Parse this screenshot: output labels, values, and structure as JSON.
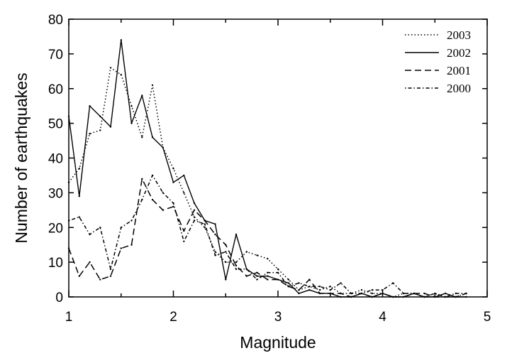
{
  "chart_data": {
    "type": "line",
    "xlabel": "Magnitude",
    "ylabel": "Number of earthquakes",
    "xlim": [
      1,
      5
    ],
    "ylim": [
      0,
      80
    ],
    "xticks": [
      1,
      2,
      3,
      4,
      5
    ],
    "yticks": [
      0,
      10,
      20,
      30,
      40,
      50,
      60,
      70,
      80
    ],
    "grid": false,
    "legend_position": "top-right",
    "series": [
      {
        "name": "2003",
        "style": "dotted",
        "color": "#000000",
        "x": [
          1.0,
          1.1,
          1.2,
          1.3,
          1.4,
          1.5,
          1.6,
          1.7,
          1.8,
          1.9,
          2.0,
          2.1,
          2.2,
          2.3,
          2.4,
          2.5,
          2.6,
          2.7,
          2.8,
          2.9,
          3.0,
          3.1,
          3.2,
          3.3,
          3.4,
          3.5,
          3.6,
          3.7,
          3.8,
          3.9,
          4.0,
          4.1,
          4.2,
          4.3,
          4.4,
          4.5,
          4.6,
          4.7,
          4.8
        ],
        "y": [
          33,
          37,
          47,
          48,
          66,
          64,
          55,
          46,
          61,
          43,
          37,
          30,
          23,
          20,
          13,
          10,
          10,
          13,
          12,
          11,
          8,
          5,
          2,
          3,
          2,
          3,
          1,
          1,
          2,
          1,
          1,
          0,
          1,
          1,
          0,
          1,
          0,
          0,
          1
        ]
      },
      {
        "name": "2002",
        "style": "solid",
        "color": "#000000",
        "x": [
          1.0,
          1.1,
          1.2,
          1.3,
          1.4,
          1.5,
          1.6,
          1.7,
          1.8,
          1.9,
          2.0,
          2.1,
          2.2,
          2.3,
          2.4,
          2.5,
          2.6,
          2.7,
          2.8,
          2.9,
          3.0,
          3.1,
          3.2,
          3.3,
          3.4,
          3.5,
          3.6,
          3.7,
          3.8,
          3.9,
          4.0,
          4.1,
          4.2,
          4.3,
          4.4,
          4.5,
          4.6,
          4.7,
          4.8
        ],
        "y": [
          52,
          29,
          55,
          52,
          49,
          74,
          50,
          58,
          46,
          43,
          33,
          35,
          27,
          22,
          21,
          5,
          18,
          8,
          6,
          6,
          5,
          4,
          1,
          2,
          1,
          1,
          0,
          0,
          1,
          0,
          1,
          0,
          0,
          1,
          0,
          0,
          1,
          0,
          0
        ]
      },
      {
        "name": "2001",
        "style": "dashed",
        "color": "#000000",
        "x": [
          1.0,
          1.1,
          1.2,
          1.3,
          1.4,
          1.5,
          1.6,
          1.7,
          1.8,
          1.9,
          2.0,
          2.1,
          2.2,
          2.3,
          2.4,
          2.5,
          2.6,
          2.7,
          2.8,
          2.9,
          3.0,
          3.1,
          3.2,
          3.3,
          3.4,
          3.5,
          3.6,
          3.7,
          3.8,
          3.9,
          4.0,
          4.1,
          4.2,
          4.3,
          4.4,
          4.5,
          4.6,
          4.7,
          4.8
        ],
        "y": [
          14,
          6,
          10,
          5,
          6,
          14,
          15,
          34,
          28,
          25,
          26,
          19,
          25,
          22,
          18,
          15,
          9,
          6,
          7,
          5,
          5,
          3,
          2,
          5,
          1,
          1,
          1,
          0,
          1,
          0,
          1,
          0,
          0,
          1,
          1,
          0,
          0,
          0,
          1
        ]
      },
      {
        "name": "2000",
        "style": "dash-dot",
        "color": "#000000",
        "x": [
          1.0,
          1.1,
          1.2,
          1.3,
          1.4,
          1.5,
          1.6,
          1.7,
          1.8,
          1.9,
          2.0,
          2.1,
          2.2,
          2.3,
          2.4,
          2.5,
          2.6,
          2.7,
          2.8,
          2.9,
          3.0,
          3.1,
          3.2,
          3.3,
          3.4,
          3.5,
          3.6,
          3.7,
          3.8,
          3.9,
          4.0,
          4.1,
          4.2,
          4.3,
          4.4,
          4.5,
          4.6,
          4.7,
          4.8
        ],
        "y": [
          22,
          23,
          18,
          20,
          8,
          20,
          22,
          28,
          35,
          30,
          27,
          16,
          22,
          21,
          12,
          13,
          8,
          8,
          5,
          7,
          7,
          3,
          4,
          3,
          3,
          2,
          4,
          1,
          1,
          2,
          2,
          4,
          1,
          1,
          0,
          1,
          0,
          1,
          1
        ]
      }
    ]
  }
}
